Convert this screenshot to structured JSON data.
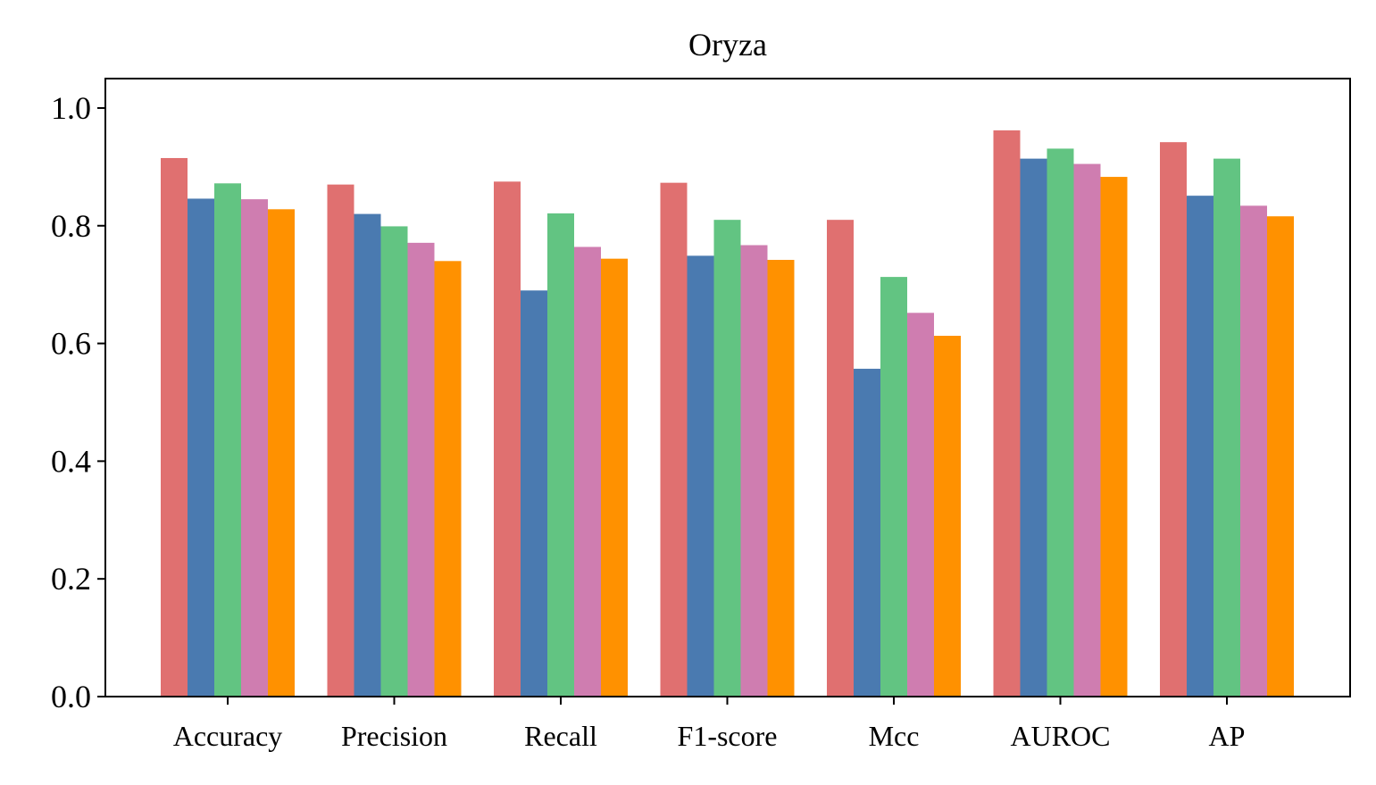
{
  "chart_data": {
    "type": "bar",
    "title": "Oryza",
    "xlabel": "",
    "ylabel": "",
    "categories": [
      "Accuracy",
      "Precision",
      "Recall",
      "F1-score",
      "Mcc",
      "AUROC",
      "AP"
    ],
    "ylim": [
      0,
      1.05
    ],
    "yticks": [
      0.0,
      0.2,
      0.4,
      0.6,
      0.8,
      1.0
    ],
    "ytick_labels": [
      "0.0",
      "0.2",
      "0.4",
      "0.6",
      "0.8",
      "1.0"
    ],
    "grid": false,
    "legend": "none",
    "series": [
      {
        "color": "#E07070",
        "values": [
          0.915,
          0.87,
          0.875,
          0.873,
          0.81,
          0.962,
          0.942
        ]
      },
      {
        "color": "#4A7AB0",
        "values": [
          0.846,
          0.82,
          0.69,
          0.749,
          0.557,
          0.914,
          0.851
        ]
      },
      {
        "color": "#62C482",
        "values": [
          0.872,
          0.799,
          0.821,
          0.81,
          0.713,
          0.931,
          0.914
        ]
      },
      {
        "color": "#CF7DB0",
        "values": [
          0.845,
          0.771,
          0.764,
          0.767,
          0.652,
          0.905,
          0.834
        ]
      },
      {
        "color": "#FF9100",
        "values": [
          0.828,
          0.74,
          0.744,
          0.742,
          0.613,
          0.883,
          0.816
        ]
      }
    ]
  }
}
